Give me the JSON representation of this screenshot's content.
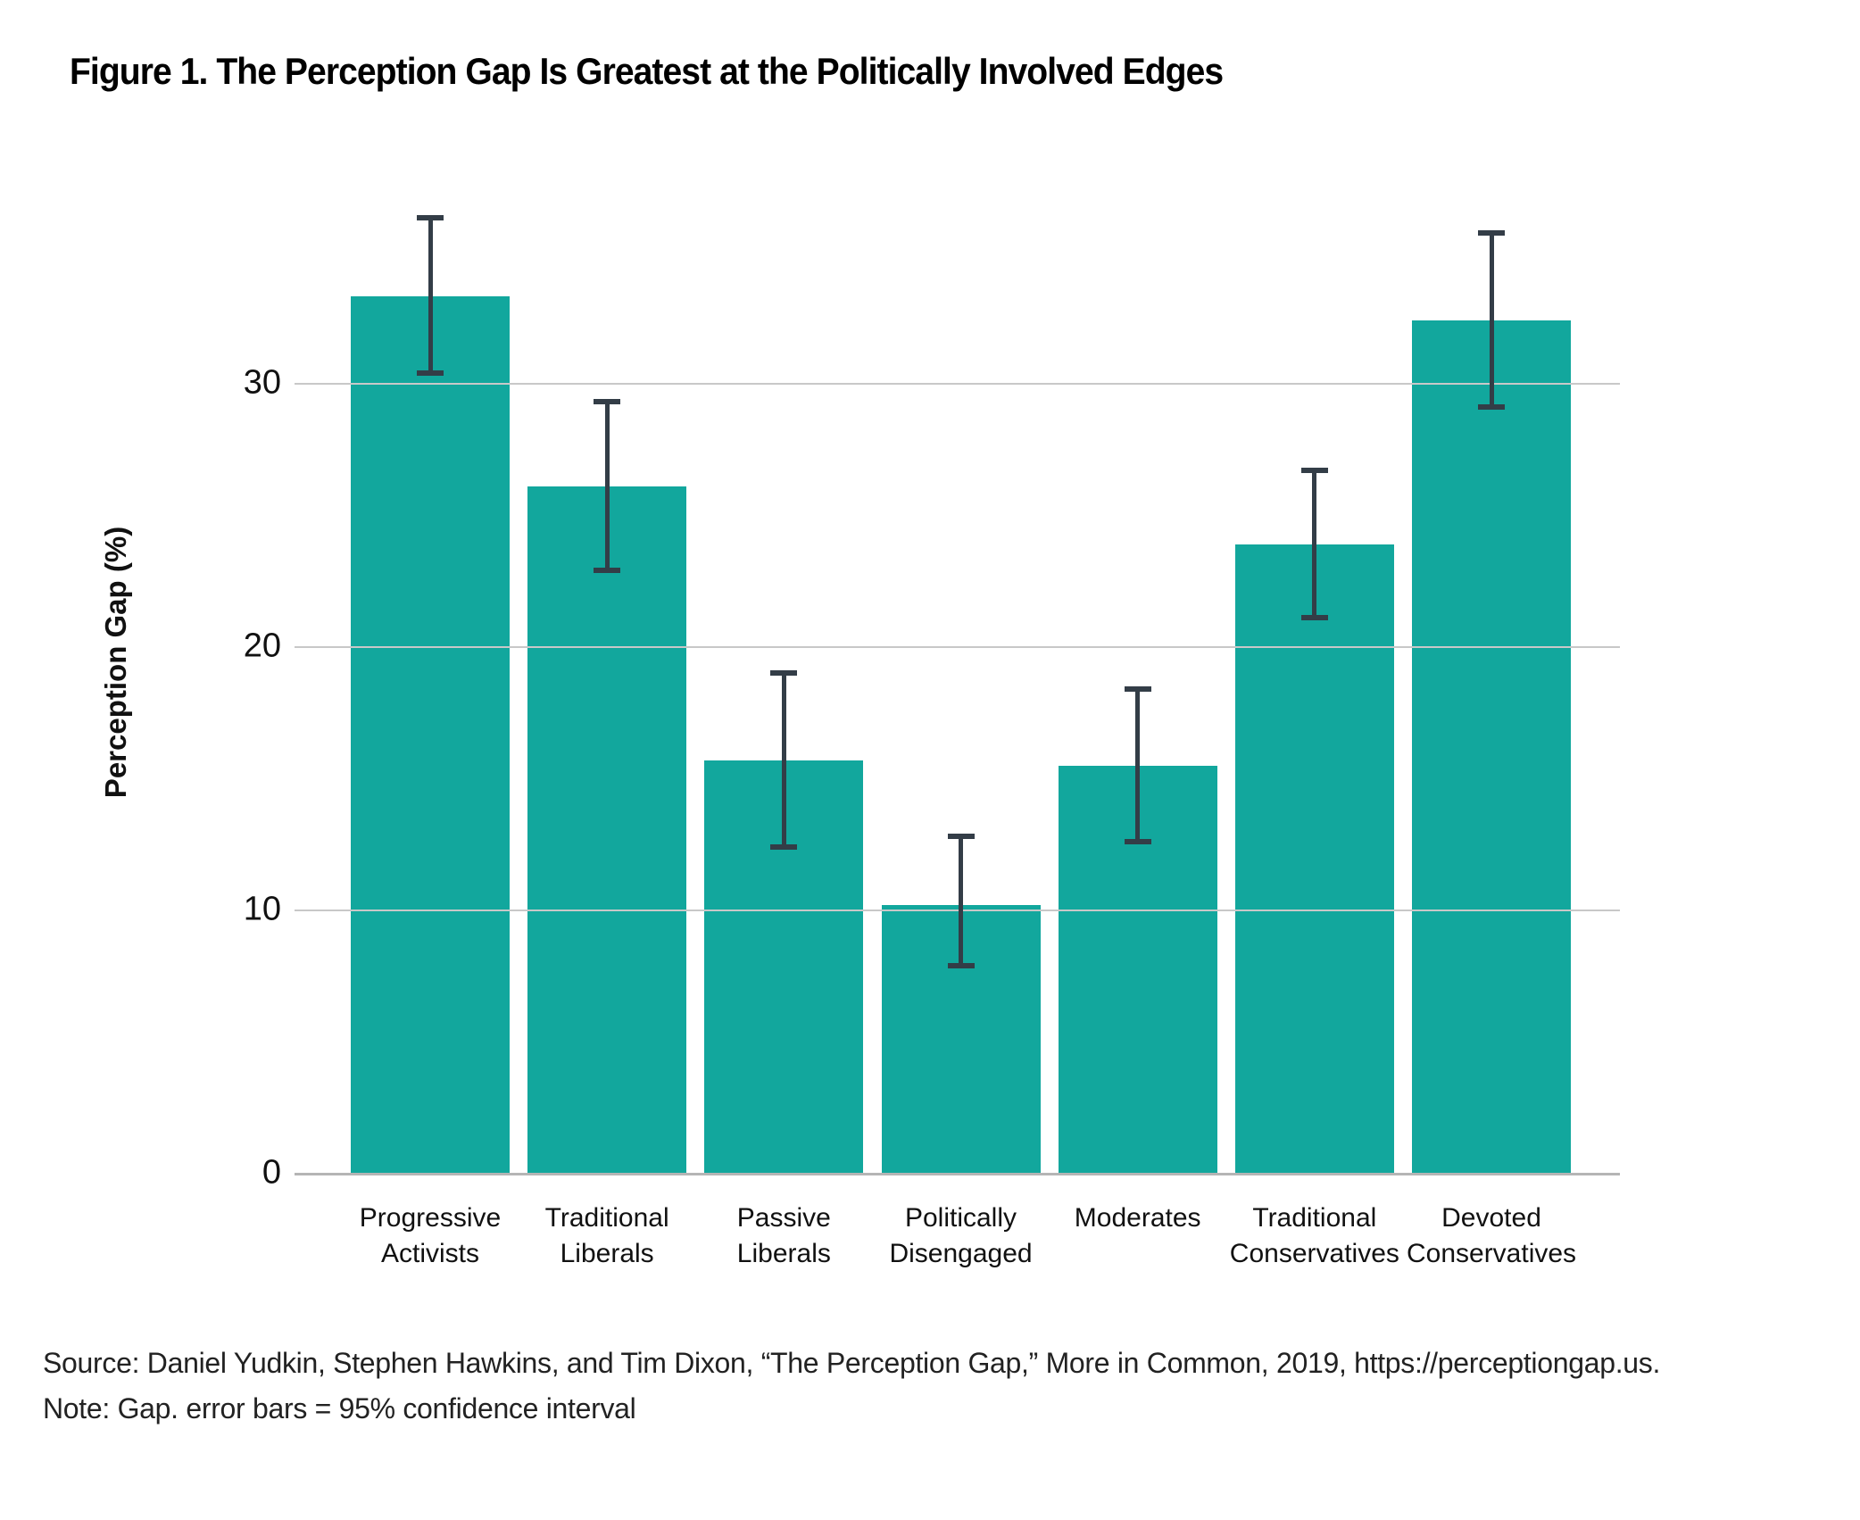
{
  "figure": {
    "title": "Figure 1. The Perception Gap Is Greatest at the Politically Involved Edges",
    "source_line": "Source: Daniel Yudkin, Stephen Hawkins, and Tim Dixon, “The Perception Gap,” More in Common, 2019, https://perceptiongap.us.",
    "note_line": "Note: Gap. error bars = 95% confidence interval"
  },
  "chart_data": {
    "type": "bar",
    "title": "Figure 1. The Perception Gap Is Greatest at the Politically Involved Edges",
    "xlabel": "",
    "ylabel": "Perception Gap (%)",
    "categories": [
      [
        "Progressive",
        "Activists"
      ],
      [
        "Traditional",
        "Liberals"
      ],
      [
        "Passive",
        "Liberals"
      ],
      [
        "Politically",
        "Disengaged"
      ],
      [
        "Moderates"
      ],
      [
        "Traditional",
        "Conservatives"
      ],
      [
        "Devoted",
        "Conservatives"
      ]
    ],
    "values": [
      33.3,
      26.1,
      15.7,
      10.2,
      15.5,
      23.9,
      32.4
    ],
    "error_low": [
      30.4,
      22.9,
      12.4,
      7.9,
      12.6,
      21.1,
      29.1
    ],
    "error_high": [
      36.3,
      29.3,
      19.0,
      12.8,
      18.4,
      26.7,
      35.7
    ],
    "error_note": "95% confidence interval",
    "yticks": [
      0,
      10,
      20,
      30
    ],
    "ylim": [
      0,
      38.8
    ],
    "grid": true,
    "legend": "none",
    "colors": {
      "bar": "#12A79D",
      "error_bar": "#333D47",
      "gridline": "#C8C8C8",
      "baseline": "#B5B5B5",
      "text": "#111111"
    }
  }
}
